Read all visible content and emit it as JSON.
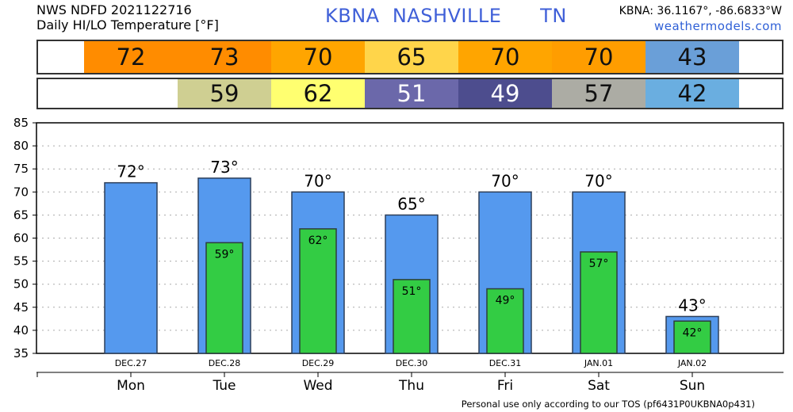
{
  "header": {
    "line1": "NWS NDFD 2021122716",
    "line2": "Daily HI/LO Temperature [°F]",
    "station": "KBNA  NASHVILLE      TN",
    "coords": "KBNA: 36.1167°, -86.6833°W",
    "site": "weathermodels.com"
  },
  "hi_band": [
    {
      "value": "72",
      "color": "#ff8c00",
      "text_color": "#111111"
    },
    {
      "value": "73",
      "color": "#ff8c00",
      "text_color": "#111111"
    },
    {
      "value": "70",
      "color": "#ffa500",
      "text_color": "#111111"
    },
    {
      "value": "65",
      "color": "#ffd54a",
      "text_color": "#111111"
    },
    {
      "value": "70",
      "color": "#ffa500",
      "text_color": "#111111"
    },
    {
      "value": "70",
      "color": "#ff9d00",
      "text_color": "#111111"
    },
    {
      "value": "43",
      "color": "#6a9fd8",
      "text_color": "#111111"
    }
  ],
  "lo_band": [
    {
      "value": "",
      "color": "#ffffff",
      "text_color": "#111111"
    },
    {
      "value": "59",
      "color": "#cfcf92",
      "text_color": "#111111"
    },
    {
      "value": "62",
      "color": "#ffff70",
      "text_color": "#111111"
    },
    {
      "value": "51",
      "color": "#6b68aa",
      "text_color": "#ffffff"
    },
    {
      "value": "49",
      "color": "#4d4d8e",
      "text_color": "#ffffff"
    },
    {
      "value": "57",
      "color": "#acaca4",
      "text_color": "#111111"
    },
    {
      "value": "42",
      "color": "#6aaee0",
      "text_color": "#111111"
    }
  ],
  "chart_data": {
    "type": "bar",
    "categories": [
      "Mon",
      "Tue",
      "Wed",
      "Thu",
      "Fri",
      "Sat",
      "Sun"
    ],
    "dates": [
      "DEC.27",
      "DEC.28",
      "DEC.29",
      "DEC.30",
      "DEC.31",
      "JAN.01",
      "JAN.02"
    ],
    "series": [
      {
        "values": [
          72,
          73,
          70,
          65,
          70,
          70,
          43
        ],
        "labels": [
          "72°",
          "73°",
          "70°",
          "65°",
          "70°",
          "70°",
          "43°"
        ],
        "color": "#5599ee"
      },
      {
        "values": [
          null,
          59,
          62,
          51,
          49,
          57,
          42
        ],
        "labels": [
          "",
          "59°",
          "62°",
          "51°",
          "49°",
          "57°",
          "42°"
        ],
        "color": "#33cc44"
      }
    ],
    "ylim": [
      35,
      85
    ],
    "yticks": [
      35,
      40,
      45,
      50,
      55,
      60,
      65,
      70,
      75,
      80,
      85
    ],
    "grid": true
  },
  "footer": "Personal use only according to our TOS (pf6431P0UKBNA0p431)"
}
